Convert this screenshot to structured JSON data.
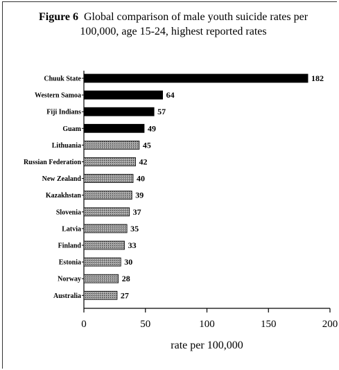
{
  "chart_data": {
    "type": "bar",
    "orientation": "horizontal",
    "title_prefix": "Figure 6",
    "title": "Global comparison of male youth suicide rates per 100,000, age 15-24, highest reported rates",
    "xlabel": "rate per 100,000",
    "ylabel": "",
    "xlim": [
      0,
      200
    ],
    "xticks": [
      0,
      50,
      100,
      150,
      200
    ],
    "grid": false,
    "categories": [
      "Chuuk State",
      "Western Samoa",
      "Fiji Indians",
      "Guam",
      "Lithuania",
      "Russian Federation",
      "New Zealand",
      "Kazakhstan",
      "Slovenia",
      "Latvia",
      "Finland",
      "Estonia",
      "Norway",
      "Australia"
    ],
    "values": [
      182,
      64,
      57,
      49,
      45,
      42,
      40,
      39,
      37,
      35,
      33,
      30,
      28,
      27
    ],
    "bar_styles": [
      "solid",
      "solid",
      "solid",
      "solid",
      "hatched",
      "hatched",
      "hatched",
      "hatched",
      "hatched",
      "hatched",
      "hatched",
      "hatched",
      "hatched",
      "hatched"
    ],
    "colors": {
      "solid": "#000000",
      "hatched": "#8a8a8a"
    }
  }
}
